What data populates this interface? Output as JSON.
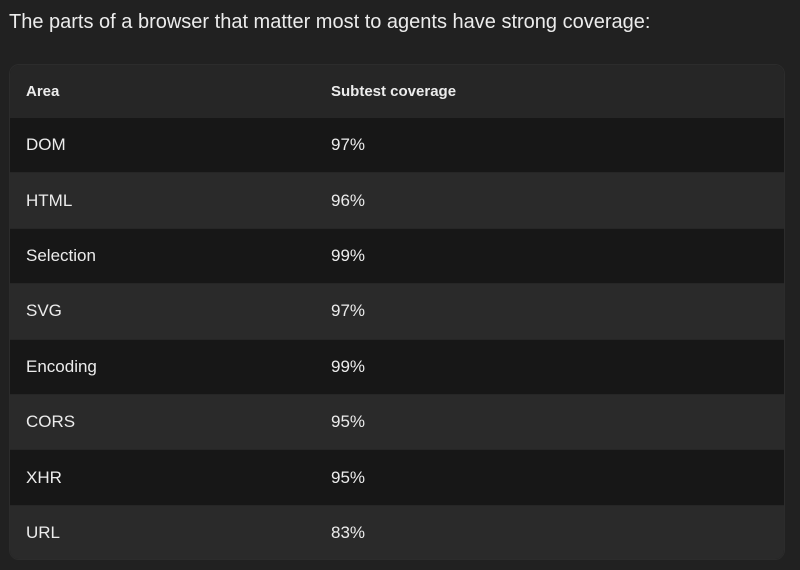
{
  "intro": "The parts of a browser that matter most to agents have strong coverage:",
  "table": {
    "header": [
      "Area",
      "Subtest coverage"
    ],
    "rows": [
      [
        "DOM",
        "97%"
      ],
      [
        "HTML",
        "96%"
      ],
      [
        "Selection",
        "99%"
      ],
      [
        "SVG",
        "97%"
      ],
      [
        "Encoding",
        "99%"
      ],
      [
        "CORS",
        "95%"
      ],
      [
        "XHR",
        "95%"
      ],
      [
        "URL",
        "83%"
      ]
    ]
  }
}
